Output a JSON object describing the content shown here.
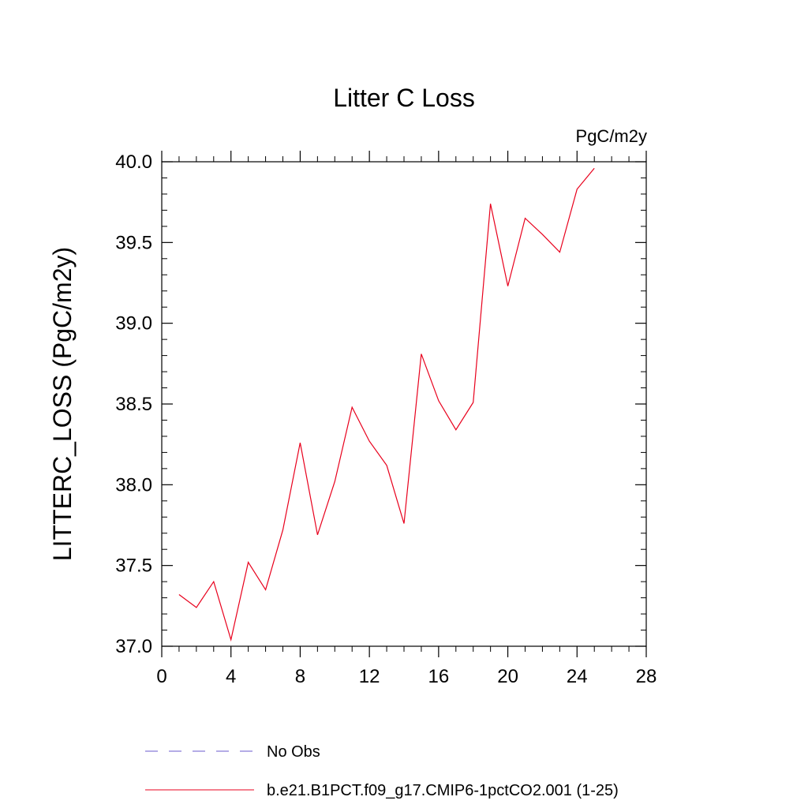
{
  "chart_data": {
    "type": "line",
    "title": "Litter C Loss",
    "subtitle": "PgC/m2y",
    "ylabel": "LITTERC_LOSS  (PgC/m2y)",
    "xlabel": "",
    "xlim": [
      0,
      28
    ],
    "ylim": [
      37.0,
      40.0
    ],
    "xticks": [
      0,
      4,
      8,
      12,
      16,
      20,
      24,
      28
    ],
    "yticks": [
      37.0,
      37.5,
      38.0,
      38.5,
      39.0,
      39.5,
      40.0
    ],
    "xtick_labels": [
      "0",
      "4",
      "8",
      "12",
      "16",
      "20",
      "24",
      "28"
    ],
    "ytick_labels": [
      "37.0",
      "37.5",
      "38.0",
      "38.5",
      "39.0",
      "39.5",
      "40.0"
    ],
    "grid": false,
    "legend_position": "bottom",
    "series": [
      {
        "name": "b.e21.B1PCT.f09_g17.CMIP6-1pctCO2.001 (1-25)",
        "color": "#e8001c",
        "style": "solid",
        "x": [
          1,
          2,
          3,
          4,
          5,
          6,
          7,
          8,
          9,
          10,
          11,
          12,
          13,
          14,
          15,
          16,
          17,
          18,
          19,
          20,
          21,
          22,
          23,
          24,
          25
        ],
        "values": [
          37.32,
          37.24,
          37.4,
          37.04,
          37.52,
          37.35,
          37.72,
          38.26,
          37.69,
          38.02,
          38.48,
          38.27,
          38.12,
          37.76,
          38.81,
          38.52,
          38.34,
          38.51,
          39.74,
          39.23,
          39.65,
          39.55,
          39.44,
          39.83,
          39.96
        ]
      }
    ],
    "legend": [
      {
        "label": "No Obs",
        "color": "#6a5acd",
        "style": "dashed"
      },
      {
        "label": "b.e21.B1PCT.f09_g17.CMIP6-1pctCO2.001 (1-25)",
        "color": "#e8001c",
        "style": "solid"
      }
    ]
  }
}
